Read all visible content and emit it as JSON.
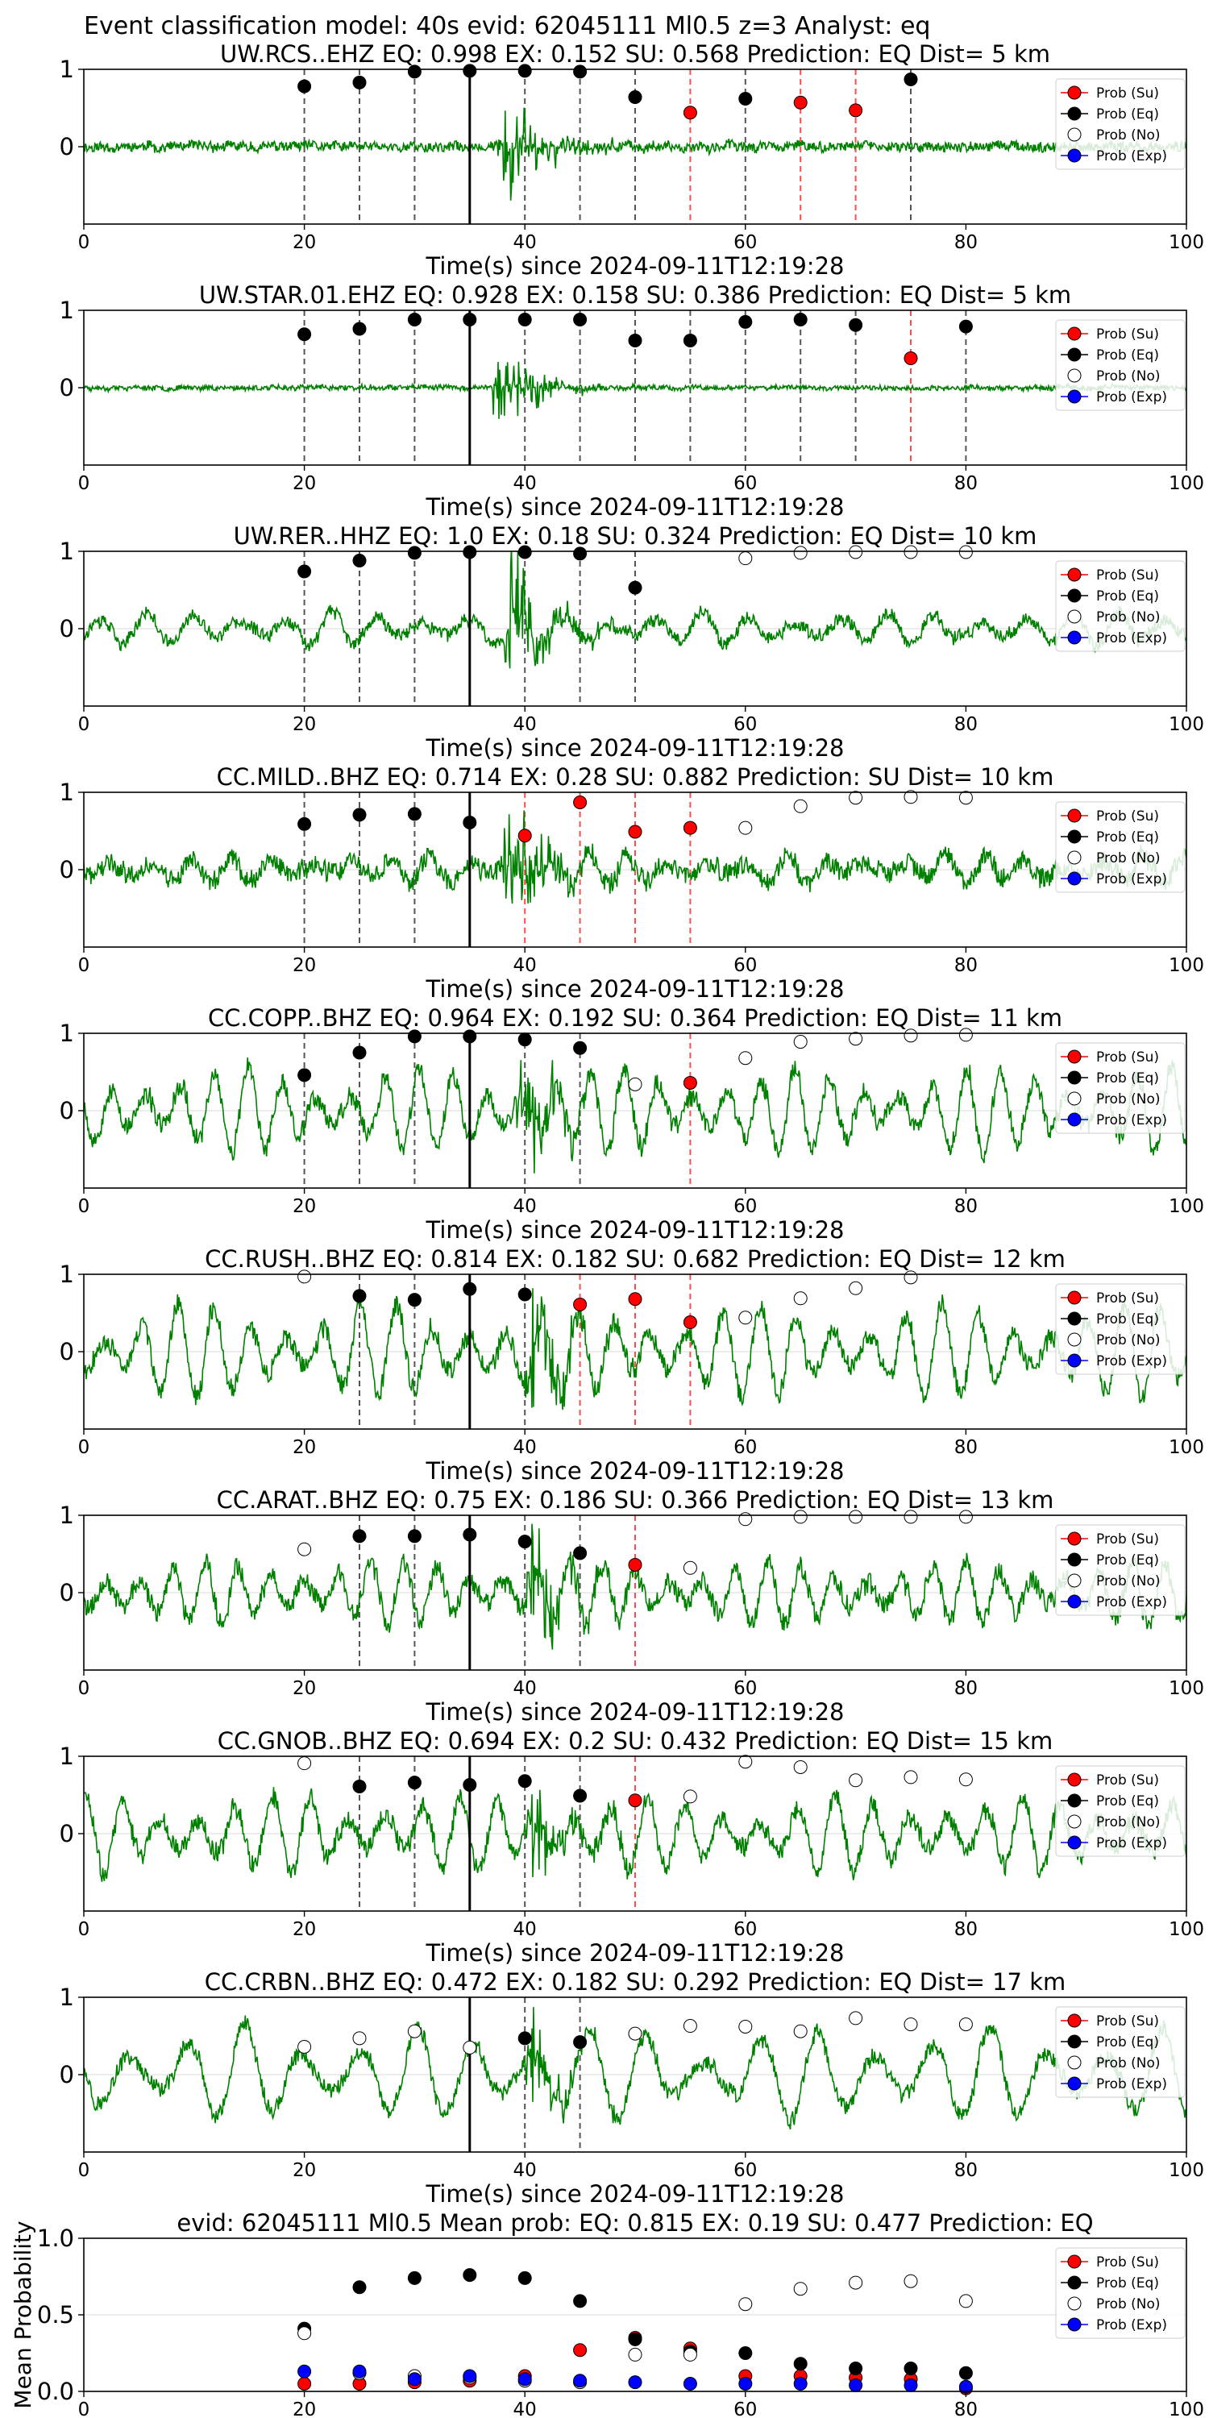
{
  "figure_title": "Event classification model: 40s evid: 62045111 Ml0.5 z=3 Analyst: eq",
  "colors": {
    "waveform": "#008000",
    "su": "#ff0000",
    "eq": "#000000",
    "no": "#ffffff",
    "exp": "#0000ff",
    "eq_line": "#555555",
    "su_line": "#ff4d4d",
    "onset_line": "#000000"
  },
  "legend": [
    "Prob (Su)",
    "Prob (Eq)",
    "Prob (No)",
    "Prob (Exp)"
  ],
  "chart_data": [
    {
      "type": "scatter",
      "title": "UW.RCS..EHZ   EQ: 0.998  EX: 0.152  SU: 0.568   Prediction: EQ    Dist= 5 km",
      "xlabel": "Time(s) since 2024-09-11T12:19:28",
      "xlim": [
        0,
        100
      ],
      "ylim": [
        -1,
        1
      ],
      "yticks": [
        0,
        1
      ],
      "xticks": [
        0,
        20,
        40,
        60,
        80,
        100
      ],
      "onset": 35,
      "arrival": 37.5,
      "amp": 0.55,
      "noise": 0.06,
      "swell": 0.0,
      "swell_period": 9,
      "seed": 11,
      "points": [
        {
          "x": 20,
          "y": 0.78,
          "cls": "eq"
        },
        {
          "x": 25,
          "y": 0.83,
          "cls": "eq"
        },
        {
          "x": 30,
          "y": 0.97,
          "cls": "eq"
        },
        {
          "x": 35,
          "y": 0.98,
          "cls": "eq"
        },
        {
          "x": 40,
          "y": 0.98,
          "cls": "eq"
        },
        {
          "x": 45,
          "y": 0.97,
          "cls": "eq"
        },
        {
          "x": 50,
          "y": 0.64,
          "cls": "eq"
        },
        {
          "x": 55,
          "y": 0.44,
          "cls": "su"
        },
        {
          "x": 60,
          "y": 0.62,
          "cls": "eq"
        },
        {
          "x": 65,
          "y": 0.57,
          "cls": "su"
        },
        {
          "x": 70,
          "y": 0.47,
          "cls": "su"
        },
        {
          "x": 75,
          "y": 0.87,
          "cls": "eq"
        }
      ]
    },
    {
      "type": "scatter",
      "title": "UW.STAR.01.EHZ   EQ: 0.928  EX: 0.158  SU: 0.386   Prediction: EQ    Dist= 5 km",
      "xlabel": "Time(s) since 2024-09-11T12:19:28",
      "xlim": [
        0,
        100
      ],
      "ylim": [
        -1,
        1
      ],
      "yticks": [
        0,
        1
      ],
      "xticks": [
        0,
        20,
        40,
        60,
        80,
        100
      ],
      "onset": 35,
      "arrival": 37.0,
      "amp": 0.5,
      "noise": 0.03,
      "swell": 0.0,
      "swell_period": 9,
      "seed": 23,
      "points": [
        {
          "x": 20,
          "y": 0.69,
          "cls": "eq"
        },
        {
          "x": 25,
          "y": 0.76,
          "cls": "eq"
        },
        {
          "x": 30,
          "y": 0.88,
          "cls": "eq"
        },
        {
          "x": 35,
          "y": 0.88,
          "cls": "eq"
        },
        {
          "x": 40,
          "y": 0.88,
          "cls": "eq"
        },
        {
          "x": 45,
          "y": 0.88,
          "cls": "eq"
        },
        {
          "x": 50,
          "y": 0.61,
          "cls": "eq"
        },
        {
          "x": 55,
          "y": 0.61,
          "cls": "eq"
        },
        {
          "x": 60,
          "y": 0.85,
          "cls": "eq"
        },
        {
          "x": 65,
          "y": 0.88,
          "cls": "eq"
        },
        {
          "x": 70,
          "y": 0.81,
          "cls": "eq"
        },
        {
          "x": 75,
          "y": 0.38,
          "cls": "su"
        },
        {
          "x": 80,
          "y": 0.79,
          "cls": "eq"
        }
      ]
    },
    {
      "type": "scatter",
      "title": "UW.RER..HHZ   EQ: 1.0  EX: 0.18  SU: 0.324   Prediction: EQ    Dist= 10 km",
      "xlabel": "Time(s) since 2024-09-11T12:19:28",
      "xlim": [
        0,
        100
      ],
      "ylim": [
        -1,
        1
      ],
      "yticks": [
        0,
        1
      ],
      "xticks": [
        0,
        20,
        40,
        60,
        80,
        100
      ],
      "onset": 35,
      "arrival": 38.0,
      "amp": 0.6,
      "noise": 0.08,
      "swell": 0.22,
      "swell_period": 4.2,
      "seed": 37,
      "points": [
        {
          "x": 20,
          "y": 0.74,
          "cls": "eq"
        },
        {
          "x": 25,
          "y": 0.88,
          "cls": "eq"
        },
        {
          "x": 30,
          "y": 0.98,
          "cls": "eq"
        },
        {
          "x": 35,
          "y": 0.99,
          "cls": "eq"
        },
        {
          "x": 40,
          "y": 0.99,
          "cls": "eq"
        },
        {
          "x": 45,
          "y": 0.97,
          "cls": "eq"
        },
        {
          "x": 50,
          "y": 0.53,
          "cls": "eq"
        },
        {
          "x": 60,
          "y": 0.91,
          "cls": "no"
        },
        {
          "x": 65,
          "y": 0.98,
          "cls": "no"
        },
        {
          "x": 70,
          "y": 0.99,
          "cls": "no"
        },
        {
          "x": 75,
          "y": 0.99,
          "cls": "no"
        },
        {
          "x": 80,
          "y": 0.99,
          "cls": "no"
        }
      ]
    },
    {
      "type": "scatter",
      "title": "CC.MILD..BHZ   EQ: 0.714  EX: 0.28  SU: 0.882   Prediction: SU    Dist= 10 km",
      "xlabel": "Time(s) since 2024-09-11T12:19:28",
      "xlim": [
        0,
        100
      ],
      "ylim": [
        -1,
        1
      ],
      "yticks": [
        0,
        1
      ],
      "xticks": [
        0,
        20,
        40,
        60,
        80,
        100
      ],
      "onset": 35,
      "arrival": 38.0,
      "amp": 0.7,
      "noise": 0.12,
      "swell": 0.18,
      "swell_period": 3.6,
      "seed": 41,
      "points": [
        {
          "x": 20,
          "y": 0.59,
          "cls": "eq"
        },
        {
          "x": 25,
          "y": 0.71,
          "cls": "eq"
        },
        {
          "x": 30,
          "y": 0.72,
          "cls": "eq"
        },
        {
          "x": 35,
          "y": 0.61,
          "cls": "eq"
        },
        {
          "x": 40,
          "y": 0.44,
          "cls": "su"
        },
        {
          "x": 45,
          "y": 0.87,
          "cls": "su"
        },
        {
          "x": 50,
          "y": 0.49,
          "cls": "su"
        },
        {
          "x": 55,
          "y": 0.54,
          "cls": "su"
        },
        {
          "x": 60,
          "y": 0.54,
          "cls": "no"
        },
        {
          "x": 65,
          "y": 0.82,
          "cls": "no"
        },
        {
          "x": 70,
          "y": 0.93,
          "cls": "no"
        },
        {
          "x": 75,
          "y": 0.94,
          "cls": "no"
        },
        {
          "x": 80,
          "y": 0.93,
          "cls": "no"
        }
      ]
    },
    {
      "type": "scatter",
      "title": "CC.COPP..BHZ   EQ: 0.964  EX: 0.192  SU: 0.364   Prediction: EQ    Dist= 11 km",
      "xlabel": "Time(s) since 2024-09-11T12:19:28",
      "xlim": [
        0,
        100
      ],
      "ylim": [
        -1,
        1
      ],
      "yticks": [
        0,
        1
      ],
      "xticks": [
        0,
        20,
        40,
        60,
        80,
        100
      ],
      "onset": 35,
      "arrival": 39.0,
      "amp": 0.5,
      "noise": 0.12,
      "swell": 0.55,
      "swell_period": 3.1,
      "seed": 53,
      "points": [
        {
          "x": 20,
          "y": 0.46,
          "cls": "eq"
        },
        {
          "x": 25,
          "y": 0.75,
          "cls": "eq"
        },
        {
          "x": 30,
          "y": 0.96,
          "cls": "eq"
        },
        {
          "x": 35,
          "y": 0.96,
          "cls": "eq"
        },
        {
          "x": 40,
          "y": 0.92,
          "cls": "eq"
        },
        {
          "x": 45,
          "y": 0.81,
          "cls": "eq"
        },
        {
          "x": 50,
          "y": 0.34,
          "cls": "no"
        },
        {
          "x": 55,
          "y": 0.36,
          "cls": "su"
        },
        {
          "x": 60,
          "y": 0.68,
          "cls": "no"
        },
        {
          "x": 65,
          "y": 0.89,
          "cls": "no"
        },
        {
          "x": 70,
          "y": 0.93,
          "cls": "no"
        },
        {
          "x": 75,
          "y": 0.97,
          "cls": "no"
        },
        {
          "x": 80,
          "y": 0.98,
          "cls": "no"
        }
      ]
    },
    {
      "type": "scatter",
      "title": "CC.RUSH..BHZ   EQ: 0.814  EX: 0.182  SU: 0.682   Prediction: EQ    Dist= 12 km",
      "xlabel": "Time(s) since 2024-09-11T12:19:28",
      "xlim": [
        0,
        100
      ],
      "ylim": [
        -1,
        1
      ],
      "yticks": [
        0,
        1
      ],
      "xticks": [
        0,
        20,
        40,
        60,
        80,
        100
      ],
      "onset": 35,
      "arrival": 40.0,
      "amp": 0.5,
      "noise": 0.12,
      "swell": 0.6,
      "swell_period": 3.3,
      "seed": 67,
      "points": [
        {
          "x": 20,
          "y": 0.97,
          "cls": "no"
        },
        {
          "x": 25,
          "y": 0.72,
          "cls": "eq"
        },
        {
          "x": 30,
          "y": 0.67,
          "cls": "eq"
        },
        {
          "x": 35,
          "y": 0.81,
          "cls": "eq"
        },
        {
          "x": 40,
          "y": 0.74,
          "cls": "eq"
        },
        {
          "x": 45,
          "y": 0.61,
          "cls": "su"
        },
        {
          "x": 50,
          "y": 0.68,
          "cls": "su"
        },
        {
          "x": 55,
          "y": 0.38,
          "cls": "su"
        },
        {
          "x": 60,
          "y": 0.44,
          "cls": "no"
        },
        {
          "x": 65,
          "y": 0.69,
          "cls": "no"
        },
        {
          "x": 70,
          "y": 0.82,
          "cls": "no"
        },
        {
          "x": 75,
          "y": 0.96,
          "cls": "no"
        }
      ]
    },
    {
      "type": "scatter",
      "title": "CC.ARAT..BHZ   EQ: 0.75  EX: 0.186  SU: 0.366   Prediction: EQ    Dist= 13 km",
      "xlabel": "Time(s) since 2024-09-11T12:19:28",
      "xlim": [
        0,
        100
      ],
      "ylim": [
        -1,
        1
      ],
      "yticks": [
        0,
        1
      ],
      "xticks": [
        0,
        20,
        40,
        60,
        80,
        100
      ],
      "onset": 35,
      "arrival": 40.0,
      "amp": 0.45,
      "noise": 0.12,
      "swell": 0.42,
      "swell_period": 3.0,
      "seed": 79,
      "points": [
        {
          "x": 20,
          "y": 0.56,
          "cls": "no"
        },
        {
          "x": 25,
          "y": 0.73,
          "cls": "eq"
        },
        {
          "x": 30,
          "y": 0.73,
          "cls": "eq"
        },
        {
          "x": 35,
          "y": 0.75,
          "cls": "eq"
        },
        {
          "x": 40,
          "y": 0.66,
          "cls": "eq"
        },
        {
          "x": 45,
          "y": 0.51,
          "cls": "eq"
        },
        {
          "x": 50,
          "y": 0.36,
          "cls": "su"
        },
        {
          "x": 55,
          "y": 0.32,
          "cls": "no"
        },
        {
          "x": 60,
          "y": 0.95,
          "cls": "no"
        },
        {
          "x": 65,
          "y": 0.98,
          "cls": "no"
        },
        {
          "x": 70,
          "y": 0.98,
          "cls": "no"
        },
        {
          "x": 75,
          "y": 0.98,
          "cls": "no"
        },
        {
          "x": 80,
          "y": 0.98,
          "cls": "no"
        }
      ]
    },
    {
      "type": "scatter",
      "title": "CC.GNOB..BHZ   EQ: 0.694  EX: 0.2  SU: 0.432   Prediction: EQ    Dist= 15 km",
      "xlabel": "Time(s) since 2024-09-11T12:19:28",
      "xlim": [
        0,
        100
      ],
      "ylim": [
        -1,
        1
      ],
      "yticks": [
        0,
        1
      ],
      "xticks": [
        0,
        20,
        40,
        60,
        80,
        100
      ],
      "onset": 35,
      "arrival": 40.0,
      "amp": 0.45,
      "noise": 0.12,
      "swell": 0.48,
      "swell_period": 3.4,
      "seed": 83,
      "points": [
        {
          "x": 20,
          "y": 0.91,
          "cls": "no"
        },
        {
          "x": 25,
          "y": 0.61,
          "cls": "eq"
        },
        {
          "x": 30,
          "y": 0.66,
          "cls": "eq"
        },
        {
          "x": 35,
          "y": 0.63,
          "cls": "eq"
        },
        {
          "x": 40,
          "y": 0.68,
          "cls": "eq"
        },
        {
          "x": 45,
          "y": 0.49,
          "cls": "eq"
        },
        {
          "x": 50,
          "y": 0.43,
          "cls": "su"
        },
        {
          "x": 55,
          "y": 0.48,
          "cls": "no"
        },
        {
          "x": 60,
          "y": 0.93,
          "cls": "no"
        },
        {
          "x": 65,
          "y": 0.86,
          "cls": "no"
        },
        {
          "x": 70,
          "y": 0.69,
          "cls": "no"
        },
        {
          "x": 75,
          "y": 0.73,
          "cls": "no"
        },
        {
          "x": 80,
          "y": 0.7,
          "cls": "no"
        }
      ]
    },
    {
      "type": "scatter",
      "title": "CC.CRBN..BHZ   EQ: 0.472  EX: 0.182  SU: 0.292   Prediction: EQ    Dist= 17 km",
      "xlabel": "Time(s) since 2024-09-11T12:19:28",
      "xlim": [
        0,
        100
      ],
      "ylim": [
        -1,
        1
      ],
      "yticks": [
        0,
        1
      ],
      "xticks": [
        0,
        20,
        40,
        60,
        80,
        100
      ],
      "onset": 35,
      "arrival": 40.0,
      "amp": 0.4,
      "noise": 0.1,
      "swell": 0.62,
      "swell_period": 5.2,
      "seed": 97,
      "points": [
        {
          "x": 20,
          "y": 0.36,
          "cls": "no"
        },
        {
          "x": 25,
          "y": 0.47,
          "cls": "no"
        },
        {
          "x": 30,
          "y": 0.56,
          "cls": "no"
        },
        {
          "x": 35,
          "y": 0.35,
          "cls": "no"
        },
        {
          "x": 40,
          "y": 0.47,
          "cls": "eq"
        },
        {
          "x": 45,
          "y": 0.42,
          "cls": "eq"
        },
        {
          "x": 50,
          "y": 0.53,
          "cls": "no"
        },
        {
          "x": 55,
          "y": 0.63,
          "cls": "no"
        },
        {
          "x": 60,
          "y": 0.62,
          "cls": "no"
        },
        {
          "x": 65,
          "y": 0.56,
          "cls": "no"
        },
        {
          "x": 70,
          "y": 0.73,
          "cls": "no"
        },
        {
          "x": 75,
          "y": 0.65,
          "cls": "no"
        },
        {
          "x": 80,
          "y": 0.65,
          "cls": "no"
        }
      ]
    },
    {
      "type": "scatter",
      "title": "evid: 62045111  Ml0.5   Mean prob:   EQ: 0.815  EX: 0.19  SU: 0.477   Prediction: EQ",
      "xlabel": "",
      "ylabel": "Mean Probability",
      "xlim": [
        0,
        100
      ],
      "ylim": [
        0,
        1
      ],
      "yticks": [
        0.0,
        0.5,
        1.0
      ],
      "ytick_labels": [
        "0.0",
        "0.5",
        "1.0"
      ],
      "xticks": [
        0,
        20,
        40,
        60,
        80,
        100
      ],
      "x": [
        20,
        25,
        30,
        35,
        40,
        45,
        50,
        55,
        60,
        65,
        70,
        75,
        80
      ],
      "series": [
        {
          "name": "Prob (Su)",
          "cls": "su",
          "values": [
            0.05,
            0.05,
            0.06,
            0.07,
            0.1,
            0.27,
            0.35,
            0.28,
            0.1,
            0.1,
            0.09,
            0.08,
            0.02
          ]
        },
        {
          "name": "Prob (Eq)",
          "cls": "eq",
          "values": [
            0.41,
            0.68,
            0.74,
            0.76,
            0.74,
            0.59,
            0.34,
            0.26,
            0.25,
            0.18,
            0.15,
            0.15,
            0.12
          ]
        },
        {
          "name": "Prob (No)",
          "cls": "no",
          "values": [
            0.38,
            0.12,
            0.1,
            0.09,
            0.07,
            0.06,
            0.24,
            0.24,
            0.57,
            0.67,
            0.71,
            0.72,
            0.59
          ]
        },
        {
          "name": "Prob (Exp)",
          "cls": "exp",
          "values": [
            0.13,
            0.13,
            0.08,
            0.1,
            0.08,
            0.07,
            0.06,
            0.05,
            0.05,
            0.05,
            0.04,
            0.04,
            0.03
          ]
        }
      ]
    }
  ]
}
